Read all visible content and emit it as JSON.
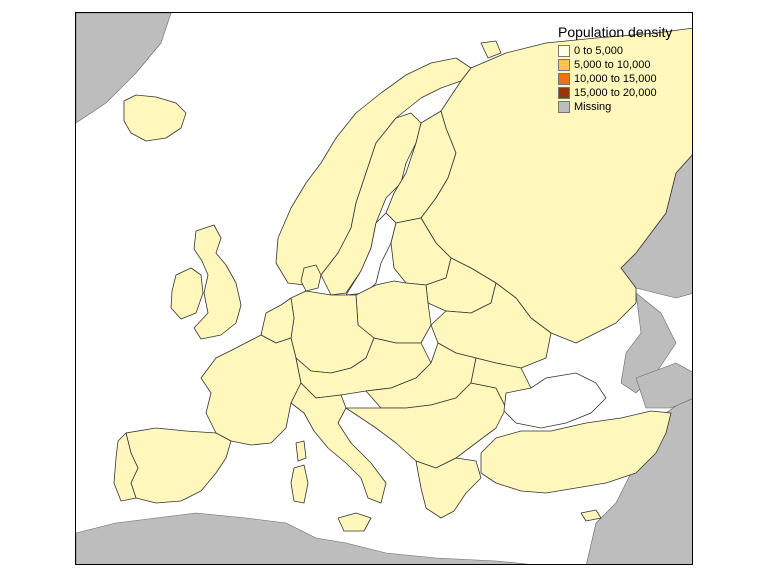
{
  "legend": {
    "title": "Population density",
    "classes": [
      {
        "label": "0 to 5,000",
        "color": "#ffffe5"
      },
      {
        "label": "5,000 to 10,000",
        "color": "#fec44f"
      },
      {
        "label": "10,000 to 15,000",
        "color": "#ec7014"
      },
      {
        "label": "15,000 to 20,000",
        "color": "#993404"
      },
      {
        "label": "Missing",
        "color": "#bdbdbd"
      }
    ]
  },
  "map": {
    "land_color": "#fff7bc",
    "missing_color": "#bdbdbd",
    "border_color": "#333333"
  }
}
